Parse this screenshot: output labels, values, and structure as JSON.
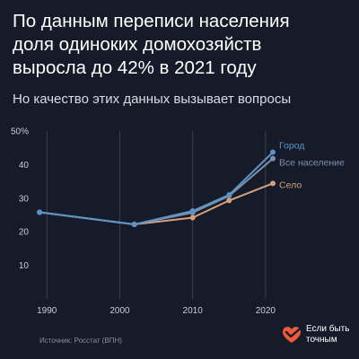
{
  "title_lines": [
    "По данным переписи населения",
    "доля одиноких домохозяйств",
    "выросла до 42% в 2021 году"
  ],
  "subtitle": "Но качество этих данных вызывает вопросы",
  "source": "Источник: Росстат (ВПН)",
  "brand": {
    "line1": "Если быть",
    "line2": "точным",
    "logo_icon": "heart-check-icon",
    "logo_color": "#ee5a3a"
  },
  "colors": {
    "background": "#161b29",
    "grid": "#3a4052",
    "city": "#5b93c7",
    "all": "#7f8fb0",
    "rural": "#d6a07e"
  },
  "chart_data": {
    "type": "line",
    "title": "По данным переписи населения доля одиноких домохозяйств выросла до 42% в 2021 году",
    "subtitle": "Но качество этих данных вызывает вопросы",
    "xlabel": "",
    "ylabel": "",
    "xlim": [
      1988,
      2021
    ],
    "ylim": [
      0,
      50
    ],
    "x_ticks": [
      "1990",
      "2000",
      "2010",
      "2020"
    ],
    "y_ticks": [
      "10",
      "20",
      "30",
      "40",
      "50%"
    ],
    "grid": "vertical",
    "legend": "series labels at line ends",
    "x": [
      1989,
      2002,
      2010,
      2015,
      2021
    ],
    "series": [
      {
        "name": "Город",
        "values": [
          25.8,
          22.2,
          26.2,
          31.0,
          43.7
        ],
        "color": "#5b93c7"
      },
      {
        "name": "Все население",
        "values": [
          25.8,
          22.2,
          25.7,
          30.7,
          41.8
        ],
        "color": "#7f8fb0"
      },
      {
        "name": "Село",
        "values": [
          25.8,
          22.2,
          24.2,
          29.3,
          34.4
        ],
        "color": "#d6a07e"
      }
    ]
  }
}
